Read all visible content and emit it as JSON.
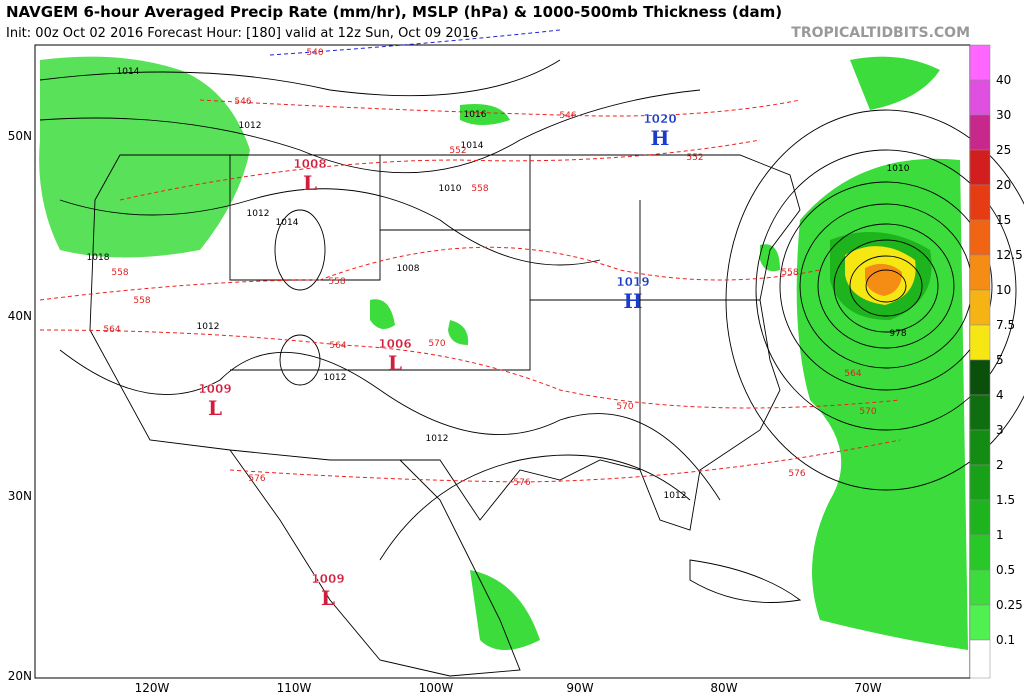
{
  "header": {
    "title": "NAVGEM 6-hour Averaged Precip Rate (mm/hr), MSLP (hPa) & 1000-500mb Thickness (dam)",
    "subtitle": "Init: 00z Oct 02 2016   Forecast Hour: [180]   valid at 12z Sun, Oct 09 2016",
    "watermark": "TROPICALTIDBITS.COM"
  },
  "map": {
    "lat_labels": [
      "50N",
      "40N",
      "30N",
      "20N"
    ],
    "lon_labels": [
      "120W",
      "110W",
      "100W",
      "90W",
      "80W",
      "70W"
    ],
    "pressure_centers": [
      {
        "value": "1008",
        "letter": "L"
      },
      {
        "value": "1006",
        "letter": "L"
      },
      {
        "value": "1009",
        "letter": "L"
      },
      {
        "value": "1009",
        "letter": "L"
      },
      {
        "value": "1020",
        "letter": "H"
      },
      {
        "value": "1019",
        "letter": "H"
      }
    ],
    "isobar_labels": [
      "1014",
      "1012",
      "1014",
      "1016",
      "1010",
      "1012",
      "1014",
      "1018",
      "1008",
      "1012",
      "1012",
      "1012",
      "1012",
      "978",
      "1010"
    ],
    "thickness_labels": [
      "540",
      "546",
      "546",
      "552",
      "552",
      "558",
      "558",
      "558",
      "558",
      "564",
      "564",
      "570",
      "570",
      "576",
      "576",
      "576",
      "564",
      "570",
      "558"
    ]
  },
  "colorbar": {
    "labels": [
      40,
      30,
      25,
      20,
      15,
      12.5,
      10,
      7.5,
      5,
      4,
      3,
      2,
      1.5,
      1,
      0.5,
      0.25,
      0.1
    ],
    "colors": [
      "#ff66ff",
      "#e050e0",
      "#c8288c",
      "#d21e1e",
      "#e63c14",
      "#f06414",
      "#f58c14",
      "#f5b414",
      "#f5e614",
      "#0a500a",
      "#0f6e0f",
      "#148c14",
      "#19a019",
      "#1eb41e",
      "#28c828",
      "#3cdc3c",
      "#50f050",
      "#ffffff"
    ]
  }
}
